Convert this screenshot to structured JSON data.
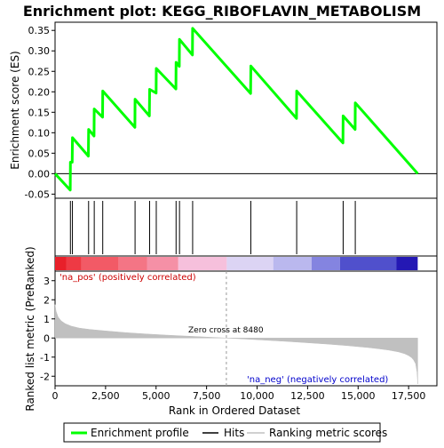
{
  "chart_data": {
    "type": "line",
    "title": "Enrichment plot: KEGG_RIBOFLAVIN_METABOLISM",
    "xlabel": "Rank in Ordered Dataset",
    "es_panel": {
      "ylabel": "Enrichment score (ES)",
      "ylim": [
        -0.06,
        0.37
      ],
      "yticks": [
        "0.35",
        "0.30",
        "0.25",
        "0.20",
        "0.15",
        "0.10",
        "0.05",
        "0.00",
        "-0.05"
      ],
      "ytick_values": [
        0.35,
        0.3,
        0.25,
        0.2,
        0.15,
        0.1,
        0.05,
        0.0,
        -0.05
      ],
      "series": [
        {
          "name": "Enrichment profile",
          "color": "#00ff00",
          "x": [
            0,
            750,
            760,
            850,
            860,
            1650,
            1660,
            1930,
            1940,
            2350,
            2360,
            3950,
            3960,
            4670,
            4680,
            5000,
            5010,
            5980,
            5990,
            6150,
            6160,
            6800,
            6810,
            9680,
            9690,
            11950,
            11960,
            14250,
            14260,
            14850,
            14860,
            17950
          ],
          "y": [
            0.0,
            -0.04,
            0.028,
            0.028,
            0.088,
            0.043,
            0.108,
            0.092,
            0.158,
            0.138,
            0.202,
            0.113,
            0.182,
            0.141,
            0.206,
            0.197,
            0.257,
            0.207,
            0.272,
            0.262,
            0.328,
            0.29,
            0.355,
            0.196,
            0.263,
            0.135,
            0.202,
            0.075,
            0.141,
            0.108,
            0.173,
            0.0
          ]
        }
      ]
    },
    "hits": {
      "name": "Hits",
      "color": "#000000",
      "x": [
        760,
        860,
        1660,
        1940,
        2360,
        3960,
        4680,
        5010,
        5990,
        6160,
        6810,
        9690,
        11960,
        14260,
        14860
      ]
    },
    "heatmap_bar": {
      "segments": [
        {
          "x0": 0,
          "x1": 550,
          "color": "#e8202a"
        },
        {
          "x0": 550,
          "x1": 1300,
          "color": "#ee3a44"
        },
        {
          "x0": 1300,
          "x1": 3150,
          "color": "#f25a66"
        },
        {
          "x0": 3150,
          "x1": 4550,
          "color": "#f47585"
        },
        {
          "x0": 4550,
          "x1": 6100,
          "color": "#f590a6"
        },
        {
          "x0": 6100,
          "x1": 8500,
          "color": "#f6c0dc"
        },
        {
          "x0": 8500,
          "x1": 10800,
          "color": "#dcd4f4"
        },
        {
          "x0": 10800,
          "x1": 12700,
          "color": "#bab8ee"
        },
        {
          "x0": 12700,
          "x1": 14100,
          "color": "#8484e0"
        },
        {
          "x0": 14100,
          "x1": 16900,
          "color": "#5050cc"
        },
        {
          "x0": 16900,
          "x1": 17950,
          "color": "#2418b4"
        }
      ]
    },
    "metric_panel": {
      "ylabel": "Ranked list metric (PreRanked)",
      "ylim": [
        -2.5,
        3.5
      ],
      "yticks": [
        "3",
        "2",
        "1",
        "0",
        "-1",
        "-2"
      ],
      "ytick_values": [
        3,
        2,
        1,
        0,
        -1,
        -2
      ],
      "series_name": "Ranking metric scores",
      "x": [
        0,
        50,
        150,
        300,
        500,
        800,
        1200,
        1700,
        2500,
        3500,
        4500,
        5500,
        6500,
        7500,
        8480,
        9500,
        10500,
        11500,
        12500,
        13500,
        14500,
        15500,
        16000,
        16500,
        17000,
        17300,
        17500,
        17650,
        17750,
        17850,
        17920,
        17950
      ],
      "y": [
        1.75,
        1.4,
        1.1,
        0.9,
        0.75,
        0.62,
        0.52,
        0.45,
        0.37,
        0.28,
        0.21,
        0.15,
        0.1,
        0.05,
        0.0,
        -0.06,
        -0.12,
        -0.18,
        -0.25,
        -0.32,
        -0.4,
        -0.5,
        -0.56,
        -0.63,
        -0.73,
        -0.82,
        -0.92,
        -1.03,
        -1.15,
        -1.35,
        -1.8,
        -2.4
      ],
      "color": "#c0c0c0"
    },
    "xlim": [
      0,
      18900
    ],
    "xticks": [
      "0",
      "2,500",
      "5,000",
      "7,500",
      "10,000",
      "12,500",
      "15,000",
      "17,500"
    ],
    "xtick_values": [
      0,
      2500,
      5000,
      7500,
      10000,
      12500,
      15000,
      17500
    ],
    "annotations": {
      "na_pos": "'na_pos' (positively correlated)",
      "na_neg": "'na_neg' (negatively correlated)",
      "zero_cross": "Zero cross at 8480",
      "zero_cross_x": 8480
    },
    "legend": {
      "placement": "bottom",
      "entries": [
        "Enrichment profile",
        "Hits",
        "Ranking metric scores"
      ]
    }
  }
}
